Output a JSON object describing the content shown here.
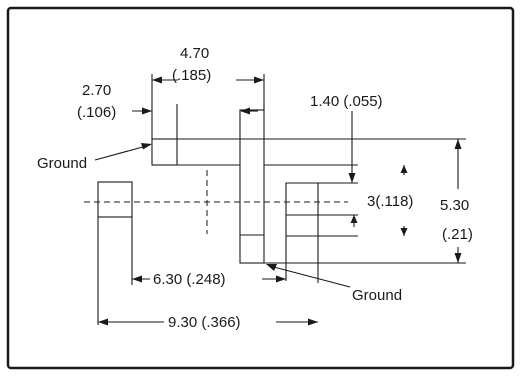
{
  "labels": {
    "dim_470": "4.70",
    "dim_185": "(.185)",
    "dim_270": "2.70",
    "dim_106": "(.106)",
    "dim_140_055": "1.40 (.055)",
    "ground_left": "Ground",
    "dim_3_118": "3(.118)",
    "dim_530": "5.30",
    "dim_21": "(.21)",
    "dim_630_248": "6.30 (.248)",
    "ground_bottom": "Ground",
    "dim_930_366": "9.30 (.366)"
  }
}
